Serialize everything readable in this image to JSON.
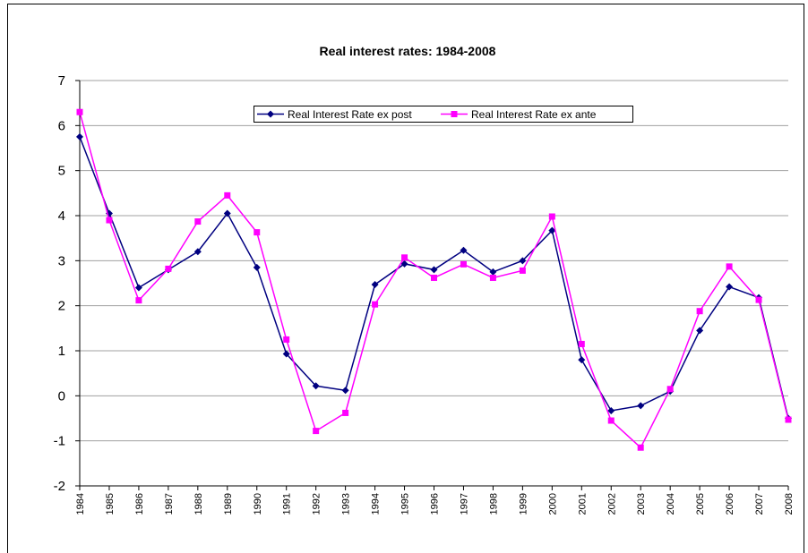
{
  "chart_data": {
    "type": "line",
    "title": "Real interest rates: 1984-2008",
    "categories": [
      "1984",
      "1985",
      "1986",
      "1987",
      "1988",
      "1989",
      "1990",
      "1991",
      "1992",
      "1993",
      "1994",
      "1995",
      "1996",
      "1997",
      "1998",
      "1999",
      "2000",
      "2001",
      "2002",
      "2003",
      "2004",
      "2005",
      "2006",
      "2007",
      "2008"
    ],
    "series": [
      {
        "name": "Real Interest Rate ex post",
        "color": "#000080",
        "marker": "diamond",
        "values": [
          5.75,
          4.05,
          2.4,
          2.8,
          3.2,
          4.05,
          2.85,
          0.93,
          0.22,
          0.12,
          2.47,
          2.93,
          2.8,
          3.23,
          2.75,
          3.0,
          3.67,
          0.8,
          -0.33,
          -0.22,
          0.1,
          1.45,
          2.42,
          2.18,
          -0.5
        ]
      },
      {
        "name": "Real Interest Rate ex ante",
        "color": "#ff00ff",
        "marker": "square",
        "values": [
          6.3,
          3.9,
          2.12,
          2.82,
          3.87,
          4.45,
          3.63,
          1.25,
          -0.78,
          -0.38,
          2.03,
          3.07,
          2.62,
          2.92,
          2.62,
          2.78,
          3.98,
          1.15,
          -0.55,
          -1.15,
          0.15,
          1.88,
          2.87,
          2.13,
          -0.53
        ]
      }
    ],
    "ylim": [
      -2,
      7
    ],
    "yticks": [
      -2,
      -1,
      0,
      1,
      2,
      3,
      4,
      5,
      6,
      7
    ],
    "grid": true,
    "legend": "top"
  }
}
